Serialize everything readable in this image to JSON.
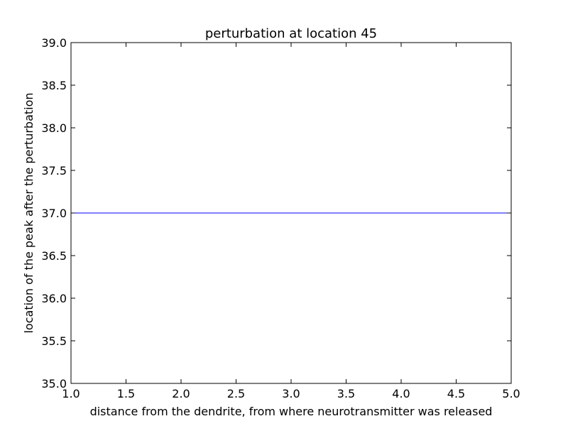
{
  "chart_data": {
    "type": "line",
    "title": "perturbation at location 45",
    "xlabel": "distance from the dendrite, from where neurotransmitter was released",
    "ylabel": "location of the peak after the perturbation",
    "xlim": [
      1.0,
      5.0
    ],
    "ylim": [
      35.0,
      39.0
    ],
    "x_ticks": [
      "1.0",
      "1.5",
      "2.0",
      "2.5",
      "3.0",
      "3.5",
      "4.0",
      "4.5",
      "5.0"
    ],
    "y_ticks": [
      "35.0",
      "35.5",
      "36.0",
      "36.5",
      "37.0",
      "37.5",
      "38.0",
      "38.5",
      "39.0"
    ],
    "grid": false,
    "series": [
      {
        "color": "#0000ff",
        "x": [
          1.0,
          2.0,
          3.0,
          4.0,
          5.0
        ],
        "y": [
          37.0,
          37.0,
          37.0,
          37.0,
          37.0
        ]
      }
    ]
  }
}
